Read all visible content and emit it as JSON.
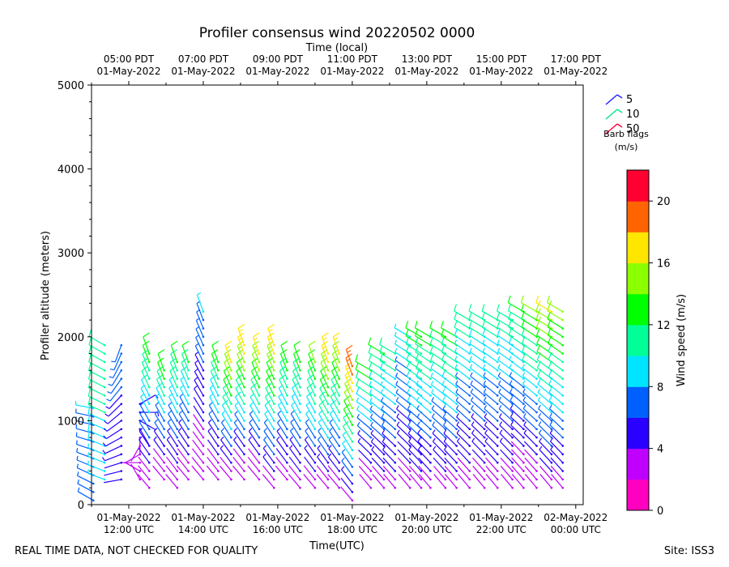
{
  "chart_data": {
    "type": "wind_barb_profile",
    "title": "Profiler consensus wind 20220502 0000",
    "xlabel_top": "Time (local)",
    "xlabel_bottom": "Time(UTC)",
    "ylabel": "Profiler altitude (meters)",
    "ylim": [
      0,
      5000
    ],
    "y_ticks": [
      0,
      1000,
      2000,
      3000,
      4000,
      5000
    ],
    "xlim_hours_utc": [
      11.0,
      24.2
    ],
    "x_ticks_bottom": [
      {
        "hour": 12,
        "line1": "01-May-2022",
        "line2": "12:00 UTC"
      },
      {
        "hour": 14,
        "line1": "01-May-2022",
        "line2": "14:00 UTC"
      },
      {
        "hour": 16,
        "line1": "01-May-2022",
        "line2": "16:00 UTC"
      },
      {
        "hour": 18,
        "line1": "01-May-2022",
        "line2": "18:00 UTC"
      },
      {
        "hour": 20,
        "line1": "01-May-2022",
        "line2": "20:00 UTC"
      },
      {
        "hour": 22,
        "line1": "01-May-2022",
        "line2": "22:00 UTC"
      },
      {
        "hour": 24,
        "line1": "02-May-2022",
        "line2": "00:00 UTC"
      }
    ],
    "x_ticks_top": [
      {
        "hour": 12,
        "line1": "05:00 PDT",
        "line2": "01-May-2022"
      },
      {
        "hour": 14,
        "line1": "07:00 PDT",
        "line2": "01-May-2022"
      },
      {
        "hour": 16,
        "line1": "09:00 PDT",
        "line2": "01-May-2022"
      },
      {
        "hour": 18,
        "line1": "11:00 PDT",
        "line2": "01-May-2022"
      },
      {
        "hour": 20,
        "line1": "13:00 PDT",
        "line2": "01-May-2022"
      },
      {
        "hour": 22,
        "line1": "15:00 PDT",
        "line2": "01-May-2022"
      },
      {
        "hour": 24,
        "line1": "17:00 PDT",
        "line2": "01-May-2022"
      }
    ],
    "barb_legend": {
      "entries": [
        {
          "label": "5",
          "color": "#1f1fff"
        },
        {
          "label": "10",
          "color": "#00e68a"
        },
        {
          "label": "50",
          "color": "#ff0033"
        }
      ],
      "title_line1": "Barb flags",
      "title_line2": "(m/s)"
    },
    "colorbar": {
      "label": "Wind speed (m/s)",
      "min": 0,
      "max": 22,
      "ticks": [
        0,
        4,
        8,
        12,
        16,
        20
      ],
      "colors": [
        "#ff00c0",
        "#c000ff",
        "#2a00ff",
        "#0060ff",
        "#00e5ff",
        "#00ff99",
        "#00ff00",
        "#8cff00",
        "#ffe600",
        "#ff6400",
        "#ff0030"
      ]
    },
    "profiles": [
      {
        "time": 11.05,
        "from_km": 0.05,
        "to_km": 1.1,
        "lower_speed": 7,
        "upper_speed": 8,
        "lower_dir": 300,
        "upper_dir": 280
      },
      {
        "time": 11.35,
        "from_km": 0.3,
        "to_km": 1.9,
        "lower_speed": 9,
        "upper_speed": 11,
        "lower_dir": 290,
        "upper_dir": 300
      },
      {
        "time": 11.8,
        "from_km": 0.3,
        "to_km": 1.9,
        "lower_speed": 4,
        "upper_speed": 7,
        "lower_dir": 260,
        "upper_dir": 200
      },
      {
        "time": 12.3,
        "from_km": 0.3,
        "to_km": 1.2,
        "lower_speed": 2,
        "upper_speed": 5,
        "lower_dir": 330,
        "upper_dir": 60
      },
      {
        "time": 12.55,
        "from_km": 0.2,
        "to_km": 1.75,
        "lower_speed": 2,
        "upper_speed": 13,
        "lower_dir": 320,
        "upper_dir": 340
      },
      {
        "time": 12.95,
        "from_km": 0.3,
        "to_km": 1.55,
        "lower_speed": 2,
        "upper_speed": 13,
        "lower_dir": 320,
        "upper_dir": 340
      },
      {
        "time": 13.3,
        "from_km": 0.2,
        "to_km": 1.7,
        "lower_speed": 2,
        "upper_speed": 12,
        "lower_dir": 320,
        "upper_dir": 340
      },
      {
        "time": 13.6,
        "from_km": 0.3,
        "to_km": 1.7,
        "lower_speed": 2,
        "upper_speed": 12,
        "lower_dir": 320,
        "upper_dir": 340
      },
      {
        "time": 14.0,
        "from_km": 0.3,
        "to_km": 2.3,
        "lower_speed": 2,
        "upper_speed": 8,
        "lower_dir": 320,
        "upper_dir": 340
      },
      {
        "time": 14.4,
        "from_km": 0.3,
        "to_km": 1.75,
        "lower_speed": 2,
        "upper_speed": 13,
        "lower_dir": 320,
        "upper_dir": 340
      },
      {
        "time": 14.75,
        "from_km": 0.3,
        "to_km": 1.7,
        "lower_speed": 3,
        "upper_speed": 16,
        "lower_dir": 320,
        "upper_dir": 340
      },
      {
        "time": 15.1,
        "from_km": 0.3,
        "to_km": 1.9,
        "lower_speed": 2,
        "upper_speed": 17,
        "lower_dir": 320,
        "upper_dir": 340
      },
      {
        "time": 15.5,
        "from_km": 0.3,
        "to_km": 1.8,
        "lower_speed": 2,
        "upper_speed": 16,
        "lower_dir": 320,
        "upper_dir": 340
      },
      {
        "time": 15.9,
        "from_km": 0.2,
        "to_km": 1.9,
        "lower_speed": 3,
        "upper_speed": 17,
        "lower_dir": 320,
        "upper_dir": 340
      },
      {
        "time": 16.25,
        "from_km": 0.3,
        "to_km": 1.7,
        "lower_speed": 3,
        "upper_speed": 13,
        "lower_dir": 320,
        "upper_dir": 340
      },
      {
        "time": 16.6,
        "from_km": 0.2,
        "to_km": 1.7,
        "lower_speed": 3,
        "upper_speed": 13,
        "lower_dir": 320,
        "upper_dir": 340
      },
      {
        "time": 17.0,
        "from_km": 0.2,
        "to_km": 1.7,
        "lower_speed": 3,
        "upper_speed": 14,
        "lower_dir": 320,
        "upper_dir": 340
      },
      {
        "time": 17.35,
        "from_km": 0.2,
        "to_km": 1.75,
        "lower_speed": 3,
        "upper_speed": 17,
        "lower_dir": 320,
        "upper_dir": 340
      },
      {
        "time": 17.65,
        "from_km": 0.2,
        "to_km": 1.75,
        "lower_speed": 3,
        "upper_speed": 16,
        "lower_dir": 320,
        "upper_dir": 340
      },
      {
        "time": 18.0,
        "from_km": 0.05,
        "to_km": 1.7,
        "lower_speed": 3,
        "upper_speed": 19,
        "lower_dir": 320,
        "upper_dir": 340
      },
      {
        "time": 18.5,
        "from_km": 0.2,
        "to_km": 1.65,
        "lower_speed": 2,
        "upper_speed": 13,
        "lower_dir": 320,
        "upper_dir": 300
      },
      {
        "time": 18.85,
        "from_km": 0.2,
        "to_km": 1.75,
        "lower_speed": 3,
        "upper_speed": 12,
        "lower_dir": 320,
        "upper_dir": 300
      },
      {
        "time": 19.15,
        "from_km": 0.2,
        "to_km": 1.75,
        "lower_speed": 3,
        "upper_speed": 11,
        "lower_dir": 320,
        "upper_dir": 300
      },
      {
        "time": 19.55,
        "from_km": 0.2,
        "to_km": 1.95,
        "lower_speed": 3,
        "upper_speed": 9,
        "lower_dir": 320,
        "upper_dir": 300
      },
      {
        "time": 19.85,
        "from_km": 0.2,
        "to_km": 1.95,
        "lower_speed": 3,
        "upper_speed": 13,
        "lower_dir": 320,
        "upper_dir": 300
      },
      {
        "time": 20.1,
        "from_km": 0.2,
        "to_km": 1.95,
        "lower_speed": 3,
        "upper_speed": 13,
        "lower_dir": 320,
        "upper_dir": 300
      },
      {
        "time": 20.5,
        "from_km": 0.2,
        "to_km": 2.0,
        "lower_speed": 3,
        "upper_speed": 12,
        "lower_dir": 320,
        "upper_dir": 300
      },
      {
        "time": 20.8,
        "from_km": 0.2,
        "to_km": 2.0,
        "lower_speed": 3,
        "upper_speed": 13,
        "lower_dir": 320,
        "upper_dir": 300
      },
      {
        "time": 21.15,
        "from_km": 0.2,
        "to_km": 2.15,
        "lower_speed": 3,
        "upper_speed": 11,
        "lower_dir": 320,
        "upper_dir": 300
      },
      {
        "time": 21.55,
        "from_km": 0.2,
        "to_km": 2.15,
        "lower_speed": 3,
        "upper_speed": 11,
        "lower_dir": 320,
        "upper_dir": 300
      },
      {
        "time": 21.9,
        "from_km": 0.2,
        "to_km": 2.25,
        "lower_speed": 3,
        "upper_speed": 11,
        "lower_dir": 320,
        "upper_dir": 300
      },
      {
        "time": 22.3,
        "from_km": 0.2,
        "to_km": 2.25,
        "lower_speed": 3,
        "upper_speed": 11,
        "lower_dir": 320,
        "upper_dir": 300
      },
      {
        "time": 22.6,
        "from_km": 0.2,
        "to_km": 2.3,
        "lower_speed": 2,
        "upper_speed": 12,
        "lower_dir": 320,
        "upper_dir": 300
      },
      {
        "time": 22.95,
        "from_km": 0.2,
        "to_km": 2.3,
        "lower_speed": 2,
        "upper_speed": 14,
        "lower_dir": 320,
        "upper_dir": 300
      },
      {
        "time": 23.35,
        "from_km": 0.2,
        "to_km": 2.35,
        "lower_speed": 3,
        "upper_speed": 16,
        "lower_dir": 320,
        "upper_dir": 300
      },
      {
        "time": 23.65,
        "from_km": 0.2,
        "to_km": 2.3,
        "lower_speed": 3,
        "upper_speed": 15,
        "lower_dir": 320,
        "upper_dir": 300
      }
    ]
  },
  "footer": {
    "left": "REAL TIME DATA, NOT CHECKED FOR QUALITY",
    "right": "Site: ISS3"
  }
}
